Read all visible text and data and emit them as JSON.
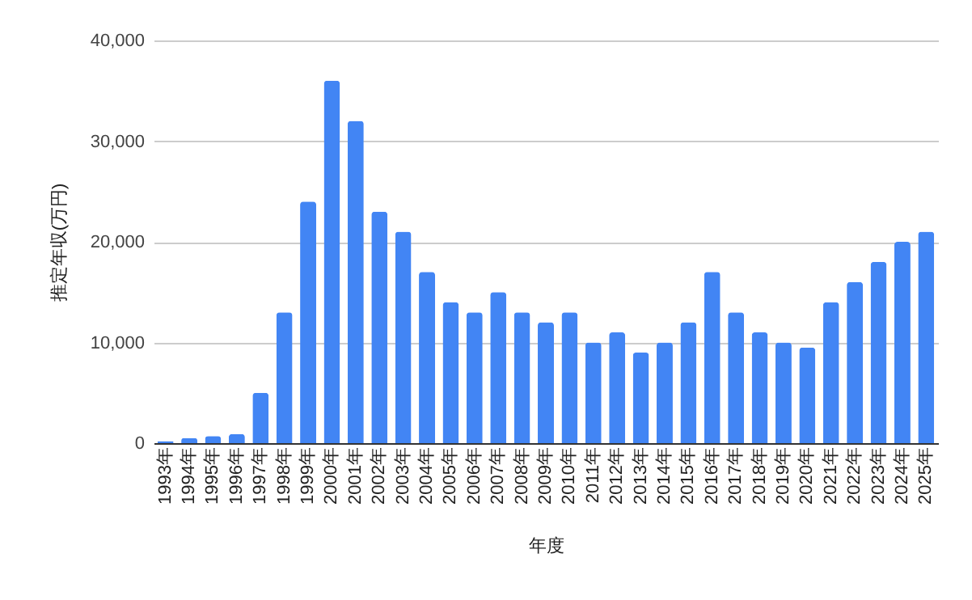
{
  "chart_data": {
    "type": "bar",
    "xlabel": "年度",
    "ylabel": "推定年収(万円)",
    "categories": [
      "1993年",
      "1994年",
      "1995年",
      "1996年",
      "1997年",
      "1998年",
      "1999年",
      "2000年",
      "2001年",
      "2002年",
      "2003年",
      "2004年",
      "2005年",
      "2006年",
      "2007年",
      "2008年",
      "2009年",
      "2010年",
      "2011年",
      "2012年",
      "2013年",
      "2014年",
      "2015年",
      "2016年",
      "2017年",
      "2018年",
      "2019年",
      "2020年",
      "2021年",
      "2022年",
      "2023年",
      "2024年",
      "2025年"
    ],
    "values": [
      200,
      500,
      700,
      900,
      5000,
      13000,
      24000,
      36000,
      32000,
      23000,
      21000,
      17000,
      14000,
      13000,
      15000,
      13000,
      12000,
      13000,
      10000,
      11000,
      9000,
      10000,
      12000,
      17000,
      13000,
      11000,
      10000,
      9500,
      14000,
      16000,
      18000,
      20000,
      21000
    ],
    "color": "#4285f4",
    "ylim": [
      0,
      40000
    ],
    "yticks": [
      0,
      {
        "value": 10000,
        "label": "10,000"
      },
      {
        "value": 20000,
        "label": "20,000"
      },
      {
        "value": 30000,
        "label": "30,000"
      },
      {
        "value": 40000,
        "label": "40,000"
      }
    ],
    "grid": "y"
  }
}
